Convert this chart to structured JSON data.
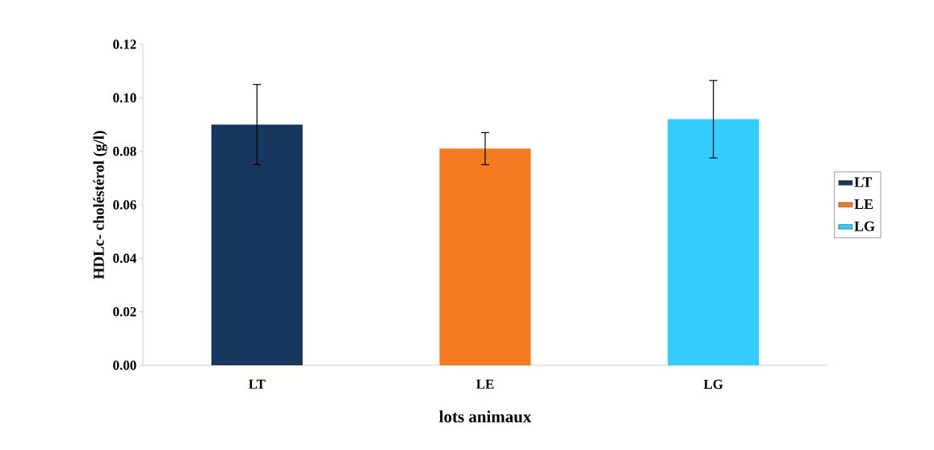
{
  "chart_data": {
    "type": "bar",
    "xlabel": "lots animaux",
    "ylabel": "HDLc- choléstérol (g/l)",
    "categories": [
      "LT",
      "LE",
      "LG"
    ],
    "series": [
      {
        "name": "LT",
        "color": "#17375e",
        "values": [
          0.09,
          null,
          null
        ],
        "errors": [
          0.015,
          null,
          null
        ]
      },
      {
        "name": "LE",
        "color": "#f47b20",
        "values": [
          null,
          0.081,
          null
        ],
        "errors": [
          null,
          0.006,
          null
        ]
      },
      {
        "name": "LG",
        "color": "#33ccff",
        "values": [
          null,
          null,
          0.092
        ],
        "errors": [
          null,
          null,
          0.0145
        ]
      }
    ],
    "ylim": [
      0,
      0.12
    ],
    "yticks": [
      {
        "value": 0,
        "label": "0.00"
      },
      {
        "value": 0.02,
        "label": "0.02"
      },
      {
        "value": 0.04,
        "label": "0.04"
      },
      {
        "value": 0.06,
        "label": "0.06"
      },
      {
        "value": 0.08,
        "label": "0.08"
      },
      {
        "value": 0.1,
        "label": "0.10"
      },
      {
        "value": 0.12,
        "label": "0.12"
      }
    ],
    "legend": "right"
  }
}
